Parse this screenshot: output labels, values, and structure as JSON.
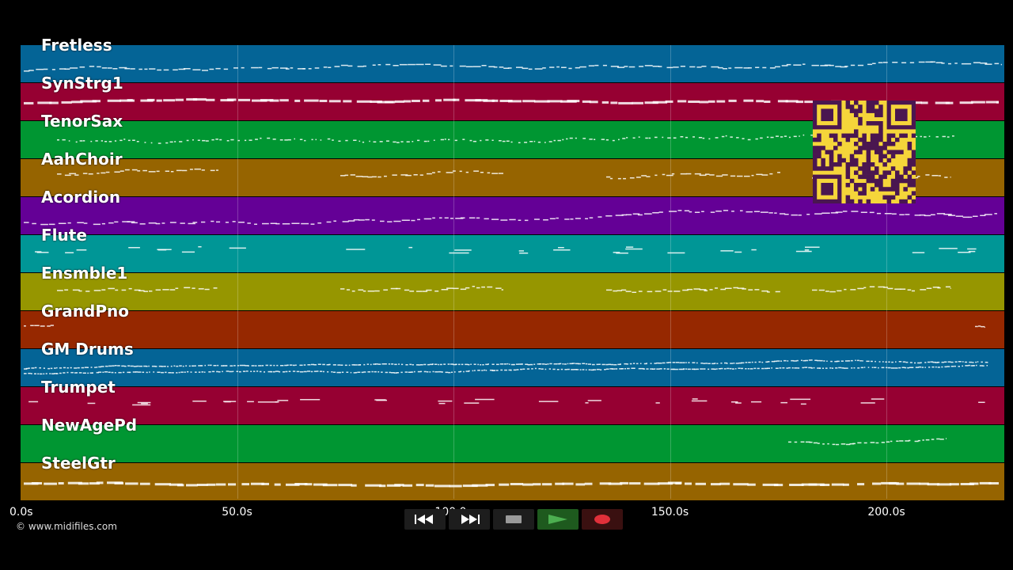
{
  "tracks": [
    {
      "name": "Fretless",
      "color": "#046496",
      "pattern": "dense-line"
    },
    {
      "name": "SynStrg1",
      "color": "#960032",
      "pattern": "thick-line"
    },
    {
      "name": "TenorSax",
      "color": "#009632",
      "pattern": "dotted"
    },
    {
      "name": "AahChoir",
      "color": "#966400",
      "pattern": "phrases"
    },
    {
      "name": "Acordion",
      "color": "#640096",
      "pattern": "dense-line"
    },
    {
      "name": "Flute",
      "color": "#009696",
      "pattern": "sparse"
    },
    {
      "name": "Ensmble1",
      "color": "#969600",
      "pattern": "phrases"
    },
    {
      "name": "GrandPno",
      "color": "#962800",
      "pattern": "edges"
    },
    {
      "name": "GM Drums",
      "color": "#046496",
      "pattern": "drums"
    },
    {
      "name": "Trumpet",
      "color": "#960032",
      "pattern": "sparse"
    },
    {
      "name": "NewAgePd",
      "color": "#009632",
      "pattern": "late"
    },
    {
      "name": "SteelGtr",
      "color": "#966400",
      "pattern": "thick-line"
    }
  ],
  "time_axis": {
    "ticks": [
      "0.0s",
      "50.0s",
      "100.0s",
      "150.0s",
      "200.0s"
    ],
    "tick_values": [
      0,
      50,
      100,
      150,
      200
    ]
  },
  "copyright": "© www.midifiles.com",
  "controls": {
    "rewind": "rewind-icon",
    "fast_forward": "fast-forward-icon",
    "stop": "stop-icon",
    "play": "play-icon",
    "record": "record-icon"
  },
  "colors": {
    "play": "#4caf50",
    "record": "#e0303a",
    "stop": "#9a9a9a",
    "qr_background": "#f5d53a",
    "qr_foreground": "#4a1650"
  }
}
